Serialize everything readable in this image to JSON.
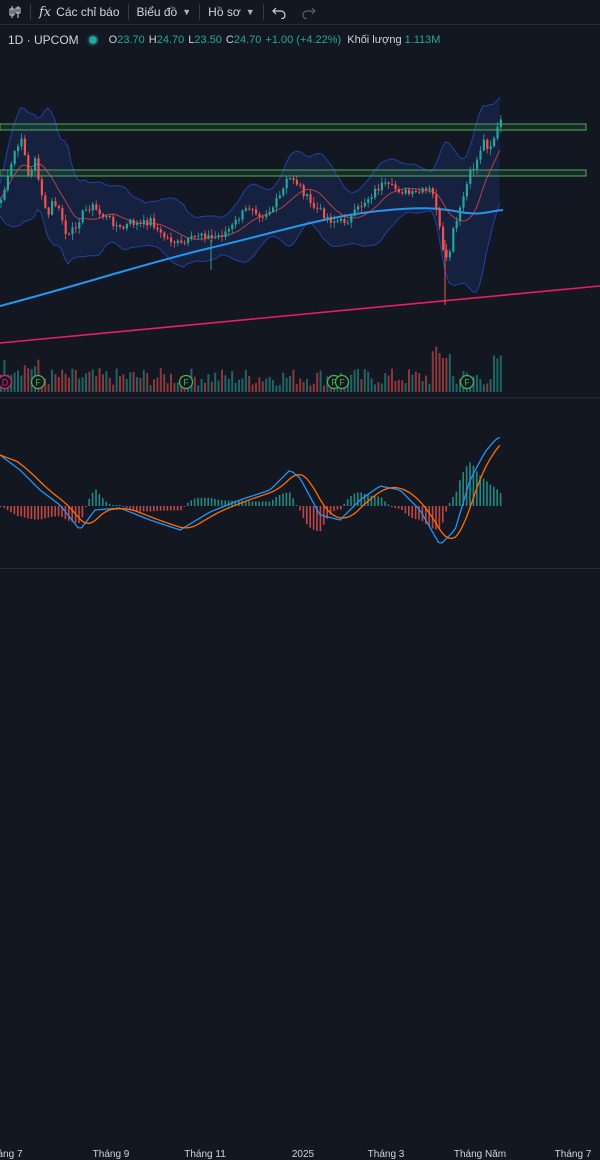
{
  "toolbar": {
    "indicators_label": "Các chỉ báo",
    "chart_label": "Biểu đồ",
    "profile_label": "Hồ sơ"
  },
  "legend": {
    "symbol": "1D · UPCOM",
    "o_label": "O",
    "o": "23.70",
    "h_label": "H",
    "h": "24.70",
    "l_label": "L",
    "l": "23.50",
    "c_label": "C",
    "c": "24.70",
    "change": "+1.00 (+4.22%)",
    "volume_label": "Khối lượng",
    "volume": "1.113M"
  },
  "xaxis": {
    "labels": [
      "áng 7",
      "Tháng 9",
      "Tháng 11",
      "2025",
      "Tháng 3",
      "Tháng Năm",
      "Tháng 7"
    ]
  },
  "colors": {
    "up": "#26a69a",
    "down": "#ef5350",
    "ma_long": "#2196f3",
    "trendline": "#e91e63",
    "zone": "#4caf50",
    "bb": "#2962ff",
    "macd": "#2196f3",
    "signal": "#ff6d00"
  },
  "events": [
    {
      "type": "D",
      "color": "#e91e63"
    },
    {
      "type": "F",
      "color": "#4caf50"
    },
    {
      "type": "F",
      "color": "#4caf50"
    },
    {
      "type": "F",
      "color": "#4caf50"
    },
    {
      "type": "F",
      "color": "#4caf50"
    },
    {
      "type": "F",
      "color": "#4caf50"
    }
  ],
  "chart_data": {
    "type": "candlestick",
    "symbol": "1D · UPCOM",
    "last": {
      "open": 23.7,
      "high": 24.7,
      "low": 23.5,
      "close": 24.7,
      "change": 1.0,
      "change_pct": 4.22,
      "volume": "1.113M"
    },
    "x_labels": [
      "áng 7",
      "Tháng 9",
      "Tháng 11",
      "2025",
      "Tháng 3",
      "Tháng Năm",
      "Tháng 7"
    ],
    "indicators": [
      "Bollinger Bands",
      "Moving averages",
      "Volume",
      "MACD"
    ],
    "horizontal_zones": 2,
    "trendline": "rising"
  }
}
